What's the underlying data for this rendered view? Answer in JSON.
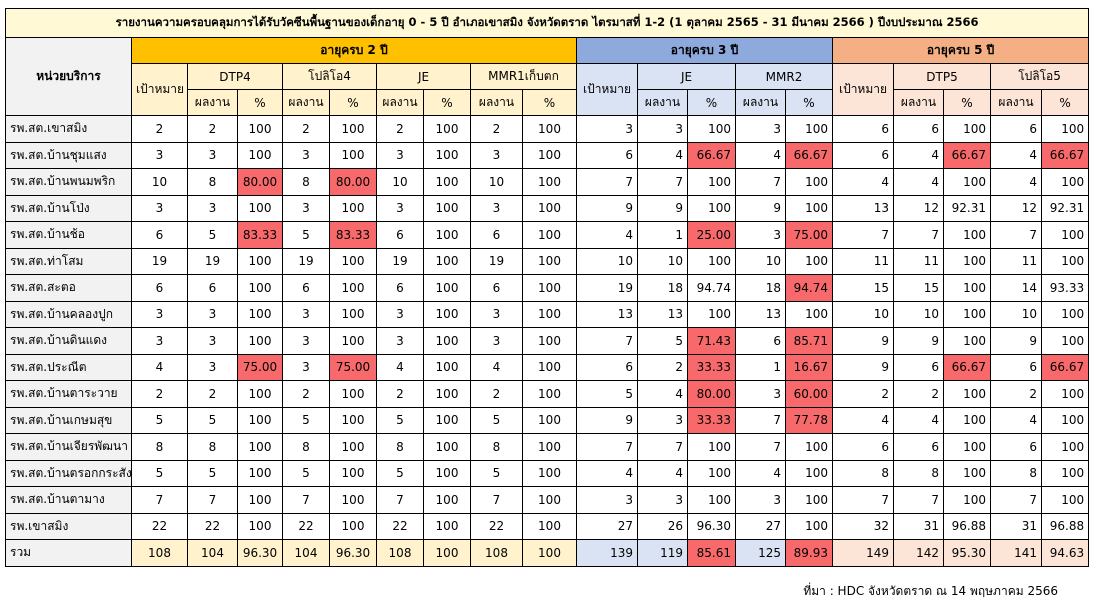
{
  "header": {
    "title": "รายงานความครอบคลุมการได้รับวัคซีนพื้นฐานของเด็กอายุ 0 - 5 ปี อำเภอเขาสมิง จังหวัดตราด ไตรมาสที่ 1-2 (1 ตุลาคม 2565 - 31 มีนาคม 2566 ) ปีงบประมาณ 2566",
    "unit_label": "หน่วยบริการ",
    "target_label": "เป้าหมาย",
    "result_label": "ผลงาน",
    "pct_label": "%",
    "groups": [
      {
        "name": "อายุครบ 2 ปี",
        "vaccines": [
          "DTP4",
          "โปลิโอ4",
          "JE",
          "MMR1เก็บตก"
        ]
      },
      {
        "name": "อายุครบ 3 ปี",
        "vaccines": [
          "JE",
          "MMR2"
        ]
      },
      {
        "name": "อายุครบ 5 ปี",
        "vaccines": [
          "DTP5",
          "โปลิโอ5"
        ]
      }
    ]
  },
  "table": {
    "highlight_color": "#f8696b",
    "rows": [
      {
        "name": "รพ.สต.เขาสมิง",
        "cells": [
          "2",
          "2",
          "100",
          "2",
          "100",
          "2",
          "100",
          "2",
          "100",
          "3",
          "3",
          "100",
          "3",
          "100",
          "6",
          "6",
          "100",
          "6",
          "100"
        ],
        "highlight": []
      },
      {
        "name": "รพ.สต.บ้านชุมแสง",
        "cells": [
          "3",
          "3",
          "100",
          "3",
          "100",
          "3",
          "100",
          "3",
          "100",
          "6",
          "4",
          "66.67",
          "4",
          "66.67",
          "6",
          "4",
          "66.67",
          "4",
          "66.67"
        ],
        "highlight": [
          11,
          13,
          16,
          18
        ]
      },
      {
        "name": "รพ.สต.บ้านพนมพริก",
        "cells": [
          "10",
          "8",
          "80.00",
          "8",
          "80.00",
          "10",
          "100",
          "10",
          "100",
          "7",
          "7",
          "100",
          "7",
          "100",
          "4",
          "4",
          "100",
          "4",
          "100"
        ],
        "highlight": [
          2,
          4
        ]
      },
      {
        "name": "รพ.สต.บ้านโป่ง",
        "cells": [
          "3",
          "3",
          "100",
          "3",
          "100",
          "3",
          "100",
          "3",
          "100",
          "9",
          "9",
          "100",
          "9",
          "100",
          "13",
          "12",
          "92.31",
          "12",
          "92.31"
        ],
        "highlight": []
      },
      {
        "name": "รพ.สต.บ้านช้อ",
        "cells": [
          "6",
          "5",
          "83.33",
          "5",
          "83.33",
          "6",
          "100",
          "6",
          "100",
          "4",
          "1",
          "25.00",
          "3",
          "75.00",
          "7",
          "7",
          "100",
          "7",
          "100"
        ],
        "highlight": [
          2,
          4,
          11,
          13
        ]
      },
      {
        "name": "รพ.สต.ท่าโสม",
        "cells": [
          "19",
          "19",
          "100",
          "19",
          "100",
          "19",
          "100",
          "19",
          "100",
          "10",
          "10",
          "100",
          "10",
          "100",
          "11",
          "11",
          "100",
          "11",
          "100"
        ],
        "highlight": []
      },
      {
        "name": "รพ.สต.สะตอ",
        "cells": [
          "6",
          "6",
          "100",
          "6",
          "100",
          "6",
          "100",
          "6",
          "100",
          "19",
          "18",
          "94.74",
          "18",
          "94.74",
          "15",
          "15",
          "100",
          "14",
          "93.33"
        ],
        "highlight": [
          13
        ]
      },
      {
        "name": "รพ.สต.บ้านคลองปูก",
        "cells": [
          "3",
          "3",
          "100",
          "3",
          "100",
          "3",
          "100",
          "3",
          "100",
          "13",
          "13",
          "100",
          "13",
          "100",
          "10",
          "10",
          "100",
          "10",
          "100"
        ],
        "highlight": []
      },
      {
        "name": "รพ.สต.บ้านดินแดง",
        "cells": [
          "3",
          "3",
          "100",
          "3",
          "100",
          "3",
          "100",
          "3",
          "100",
          "7",
          "5",
          "71.43",
          "6",
          "85.71",
          "9",
          "9",
          "100",
          "9",
          "100"
        ],
        "highlight": [
          11,
          13
        ]
      },
      {
        "name": "รพ.สต.ประณีต",
        "cells": [
          "4",
          "3",
          "75.00",
          "3",
          "75.00",
          "4",
          "100",
          "4",
          "100",
          "6",
          "2",
          "33.33",
          "1",
          "16.67",
          "9",
          "6",
          "66.67",
          "6",
          "66.67"
        ],
        "highlight": [
          2,
          4,
          11,
          13,
          16,
          18
        ]
      },
      {
        "name": "รพ.สต.บ้านตาระวาย",
        "cells": [
          "2",
          "2",
          "100",
          "2",
          "100",
          "2",
          "100",
          "2",
          "100",
          "5",
          "4",
          "80.00",
          "3",
          "60.00",
          "2",
          "2",
          "100",
          "2",
          "100"
        ],
        "highlight": [
          11,
          13
        ]
      },
      {
        "name": "รพ.สต.บ้านเกษมสุข",
        "cells": [
          "5",
          "5",
          "100",
          "5",
          "100",
          "5",
          "100",
          "5",
          "100",
          "9",
          "3",
          "33.33",
          "7",
          "77.78",
          "4",
          "4",
          "100",
          "4",
          "100"
        ],
        "highlight": [
          11,
          13
        ]
      },
      {
        "name": "รพ.สต.บ้านเจียรพัฒนา",
        "cells": [
          "8",
          "8",
          "100",
          "8",
          "100",
          "8",
          "100",
          "8",
          "100",
          "7",
          "7",
          "100",
          "7",
          "100",
          "6",
          "6",
          "100",
          "6",
          "100"
        ],
        "highlight": []
      },
      {
        "name": "รพ.สต.บ้านตรอกกระสังข์",
        "cells": [
          "5",
          "5",
          "100",
          "5",
          "100",
          "5",
          "100",
          "5",
          "100",
          "4",
          "4",
          "100",
          "4",
          "100",
          "8",
          "8",
          "100",
          "8",
          "100"
        ],
        "highlight": []
      },
      {
        "name": "รพ.สต.บ้านตามาง",
        "cells": [
          "7",
          "7",
          "100",
          "7",
          "100",
          "7",
          "100",
          "7",
          "100",
          "3",
          "3",
          "100",
          "3",
          "100",
          "7",
          "7",
          "100",
          "7",
          "100"
        ],
        "highlight": []
      },
      {
        "name": "รพ.เขาสมิง",
        "cells": [
          "22",
          "22",
          "100",
          "22",
          "100",
          "22",
          "100",
          "22",
          "100",
          "27",
          "26",
          "96.30",
          "27",
          "100",
          "32",
          "31",
          "96.88",
          "31",
          "96.88"
        ],
        "highlight": []
      }
    ],
    "total": {
      "name": "รวม",
      "cells": [
        "108",
        "104",
        "96.30",
        "104",
        "96.30",
        "108",
        "100",
        "108",
        "100",
        "139",
        "119",
        "85.61",
        "125",
        "89.93",
        "149",
        "142",
        "95.30",
        "141",
        "94.63"
      ],
      "highlight": [
        11,
        13
      ]
    }
  },
  "footer": {
    "source": "ที่มา : HDC จังหวัดตราด ณ 14 พฤษภาคม 2566"
  }
}
